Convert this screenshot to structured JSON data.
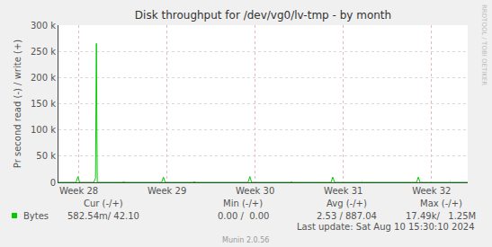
{
  "chart_data": {
    "type": "line",
    "title": "Disk throughput for /dev/vg0/lv-tmp - by month",
    "y_label": "Pr second read (-) / write (+)",
    "x": [
      27.77,
      27.97,
      27.99,
      28.01,
      28.17,
      28.19,
      28.2,
      28.21,
      28.23,
      28.5,
      28.51,
      28.52,
      28.94,
      28.96,
      28.98,
      29.3,
      29.31,
      29.32,
      29.92,
      29.94,
      29.96,
      30.4,
      30.41,
      30.42,
      30.86,
      30.88,
      30.9,
      31.2,
      31.21,
      31.22,
      31.83,
      31.85,
      31.87,
      32.2,
      32.21,
      32.22,
      32.41
    ],
    "series": [
      {
        "name": "Bytes",
        "color": "#00cc00",
        "values": [
          0,
          0,
          11000,
          0,
          0,
          8000,
          265000,
          0,
          0,
          0,
          2000,
          0,
          0,
          10000,
          0,
          0,
          1500,
          0,
          0,
          11000,
          0,
          0,
          1500,
          0,
          0,
          10000,
          0,
          0,
          1500,
          0,
          0,
          10000,
          0,
          0,
          1500,
          0,
          0
        ]
      }
    ],
    "xlim": [
      27.77,
      32.41
    ],
    "xticks": [
      {
        "value": 28,
        "label": "Week 28"
      },
      {
        "value": 29,
        "label": "Week 29"
      },
      {
        "value": 30,
        "label": "Week 30"
      },
      {
        "value": 31,
        "label": "Week 31"
      },
      {
        "value": 32,
        "label": "Week 32"
      }
    ],
    "ylim": [
      0,
      300000
    ],
    "yticks": [
      0,
      {
        "value": 50000,
        "label": "50 k"
      },
      {
        "value": 100000,
        "label": "100 k"
      },
      {
        "value": 150000,
        "label": "150 k"
      },
      {
        "value": 200000,
        "label": "200 k"
      },
      {
        "value": 250000,
        "label": "250 k"
      },
      {
        "value": 300000,
        "label": "300 k"
      }
    ],
    "grid": true,
    "summary": {
      "columns": [
        "Cur (-/+)",
        "Min (-/+)",
        "Avg (-/+)",
        "Max (-/+)"
      ],
      "values": [
        "582.54m/ 42.10",
        "0.00 /  0.00",
        "2.53 / 887.04",
        "17.49k/   1.25M"
      ]
    },
    "last_update": "Last update: Sat Aug 10 15:30:10 2024",
    "footer": "Munin 2.0.56",
    "watermark": "RRDTOOL / TOBI OETIKER"
  }
}
